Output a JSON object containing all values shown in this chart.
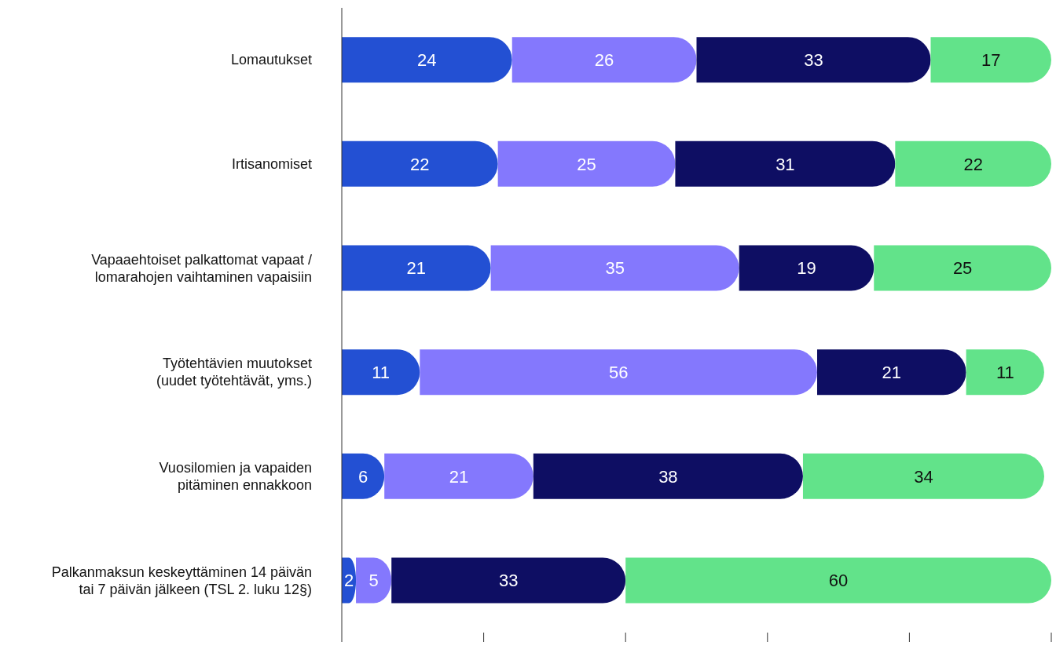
{
  "chart_data": {
    "type": "bar",
    "orientation": "horizontal",
    "stacked": true,
    "data_labels": true,
    "tick_labels": "y",
    "categories": [
      "Lomautukset",
      "Irtisanomiset",
      "Vapaaehtoiset palkattomat vapaat /\nlomarahojen vaihtaminen vapaisiin",
      "Työtehtävien muutokset\n(uudet työtehtävät, yms.)",
      "Vuosilomien ja vapaiden\npitäminen ennakkoon",
      "Palkanmaksun keskeyttäminen 14 päivän\ntai 7 päivän jälkeen (TSL 2. luku 12§)"
    ],
    "series": [
      {
        "color": "#2350d3",
        "values": [
          24,
          22,
          21,
          11,
          6,
          2
        ]
      },
      {
        "color": "#8478fd",
        "values": [
          26,
          25,
          35,
          56,
          21,
          5
        ]
      },
      {
        "color": "#0e0e63",
        "values": [
          33,
          31,
          19,
          21,
          38,
          33
        ]
      },
      {
        "color": "#62e38a",
        "values": [
          17,
          22,
          25,
          11,
          34,
          60
        ]
      }
    ],
    "xlim": [
      0,
      100
    ],
    "xticks": [
      {
        "value": 0,
        "label": null
      },
      {
        "value": 20,
        "label": null
      },
      {
        "value": 40,
        "label": null
      },
      {
        "value": 60,
        "label": null
      },
      {
        "value": 80,
        "label": null
      },
      {
        "value": 100,
        "label": null
      }
    ]
  }
}
